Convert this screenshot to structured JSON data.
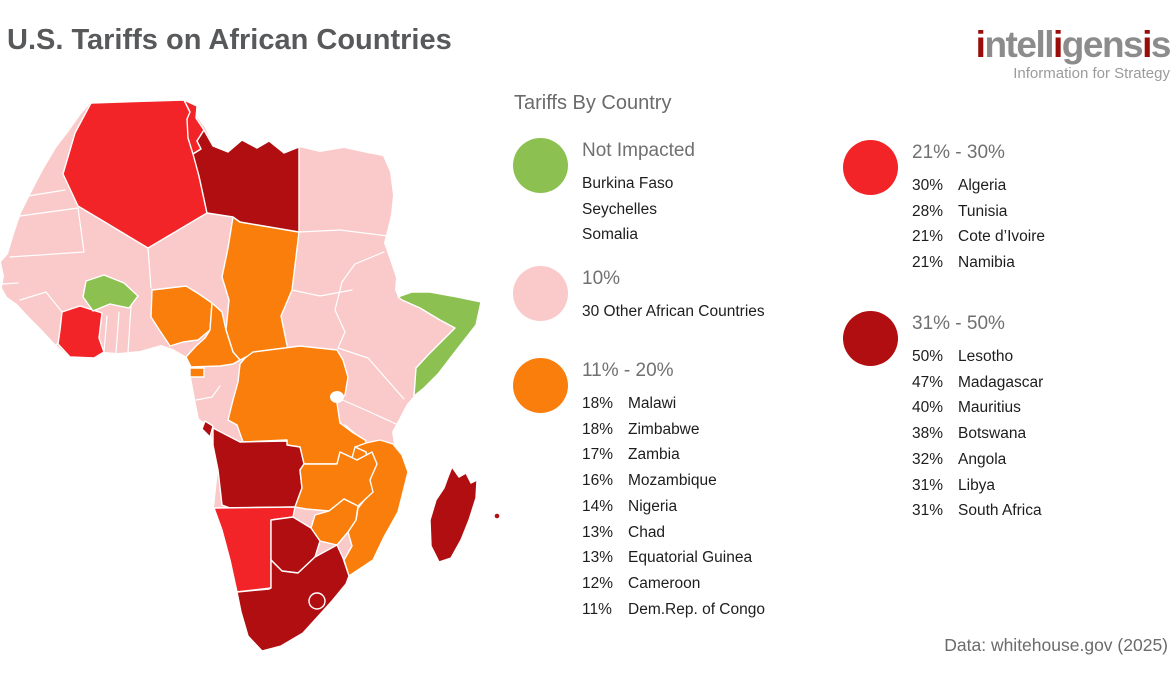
{
  "title": "U.S. Tariffs on African Countries",
  "logo": {
    "segments": [
      {
        "text": "i",
        "accent": true
      },
      {
        "text": "ntell",
        "accent": false
      },
      {
        "text": "i",
        "accent": true
      },
      {
        "text": "gens",
        "accent": false
      },
      {
        "text": "i",
        "accent": true
      },
      {
        "text": "s",
        "accent": false
      }
    ],
    "tagline": "Information for Strategy"
  },
  "legend": {
    "heading": "Tariffs By Country",
    "groups": [
      {
        "label": "Not Impacted",
        "category": "green",
        "entries": [
          {
            "value": "",
            "name": "Burkina Faso"
          },
          {
            "value": "",
            "name": "Seychelles"
          },
          {
            "value": "",
            "name": "Somalia"
          }
        ]
      },
      {
        "label": "10%",
        "category": "pink",
        "entries": [
          {
            "value": "",
            "name": "30 Other African Countries"
          }
        ]
      },
      {
        "label": "11% - 20%",
        "category": "orange",
        "entries": [
          {
            "value": "18%",
            "name": "Malawi"
          },
          {
            "value": "18%",
            "name": "Zimbabwe"
          },
          {
            "value": "17%",
            "name": "Zambia"
          },
          {
            "value": "16%",
            "name": "Mozambique"
          },
          {
            "value": "14%",
            "name": "Nigeria"
          },
          {
            "value": "13%",
            "name": "Chad"
          },
          {
            "value": "13%",
            "name": "Equatorial Guinea"
          },
          {
            "value": "12%",
            "name": "Cameroon"
          },
          {
            "value": "11%",
            "name": "Dem.Rep. of Congo"
          }
        ]
      },
      {
        "label": "21% - 30%",
        "category": "red",
        "entries": [
          {
            "value": "30%",
            "name": "Algeria"
          },
          {
            "value": "28%",
            "name": "Tunisia"
          },
          {
            "value": "21%",
            "name": "Cote d’Ivoire"
          },
          {
            "value": "21%",
            "name": "Namibia"
          }
        ]
      },
      {
        "label": "31% - 50%",
        "category": "darkred",
        "entries": [
          {
            "value": "50%",
            "name": "Lesotho"
          },
          {
            "value": "47%",
            "name": "Madagascar"
          },
          {
            "value": "40%",
            "name": "Mauritius"
          },
          {
            "value": "38%",
            "name": "Botswana"
          },
          {
            "value": "32%",
            "name": "Angola"
          },
          {
            "value": "31%",
            "name": "Libya"
          },
          {
            "value": "31%",
            "name": "South Africa"
          }
        ]
      }
    ]
  },
  "source": "Data: whitehouse.gov (2025)",
  "colors": {
    "green": "#8CC152",
    "pink": "#FAC9C9",
    "orange": "#F97E0B",
    "red": "#F22427",
    "darkred": "#B00E11"
  },
  "map": {
    "fills": {
      "other-countries": "pink",
      "algeria": "red",
      "tunisia": "red",
      "libya": "darkred",
      "chad": "orange",
      "burkina-faso": "green",
      "cote-divoire": "red",
      "nigeria": "orange",
      "cameroon": "orange",
      "equatorial-guinea": "orange",
      "dr-congo": "orange",
      "cabinda": "darkred",
      "angola": "darkred",
      "zambia": "orange",
      "malawi": "orange",
      "mozambique": "orange",
      "zimbabwe": "orange",
      "namibia": "red",
      "botswana": "darkred",
      "south-africa": "darkred",
      "lesotho": "darkred",
      "somalia": "green",
      "madagascar": "darkred",
      "mauritius": "darkred"
    }
  },
  "chart_data": {
    "type": "choropleth-map",
    "title": "U.S. Tariffs on African Countries",
    "legend_position": "right",
    "categories": [
      "Not Impacted",
      "10%",
      "11% - 20%",
      "21% - 30%",
      "31% - 50%"
    ],
    "values": [
      {
        "country": "Burkina Faso",
        "tariff": null
      },
      {
        "country": "Seychelles",
        "tariff": null
      },
      {
        "country": "Somalia",
        "tariff": null
      },
      {
        "country": "30 Other African Countries",
        "tariff": 10
      },
      {
        "country": "Malawi",
        "tariff": 18
      },
      {
        "country": "Zimbabwe",
        "tariff": 18
      },
      {
        "country": "Zambia",
        "tariff": 17
      },
      {
        "country": "Mozambique",
        "tariff": 16
      },
      {
        "country": "Nigeria",
        "tariff": 14
      },
      {
        "country": "Chad",
        "tariff": 13
      },
      {
        "country": "Equatorial Guinea",
        "tariff": 13
      },
      {
        "country": "Cameroon",
        "tariff": 12
      },
      {
        "country": "Dem.Rep. of Congo",
        "tariff": 11
      },
      {
        "country": "Algeria",
        "tariff": 30
      },
      {
        "country": "Tunisia",
        "tariff": 28
      },
      {
        "country": "Cote d’Ivoire",
        "tariff": 21
      },
      {
        "country": "Namibia",
        "tariff": 21
      },
      {
        "country": "Lesotho",
        "tariff": 50
      },
      {
        "country": "Madagascar",
        "tariff": 47
      },
      {
        "country": "Mauritius",
        "tariff": 40
      },
      {
        "country": "Botswana",
        "tariff": 38
      },
      {
        "country": "Angola",
        "tariff": 32
      },
      {
        "country": "Libya",
        "tariff": 31
      },
      {
        "country": "South Africa",
        "tariff": 31
      }
    ]
  }
}
